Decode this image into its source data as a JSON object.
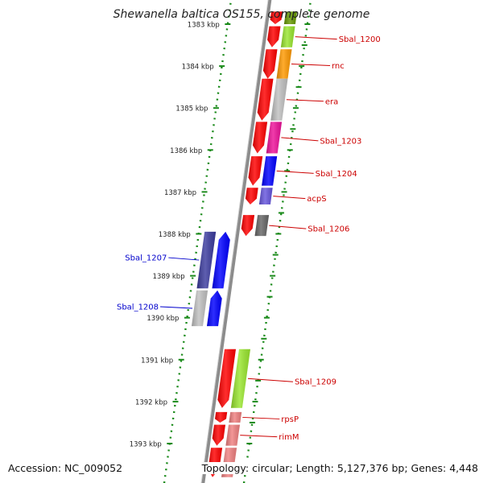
{
  "title": "Shewanella baltica OS155, complete genome",
  "accession_text": "Accession: NC_009052",
  "summary_text": "Topology: circular; Length: 5,127,376 bp; Genes: 4,448",
  "ruler_unit": "kbp",
  "ruler_ticks": [
    {
      "kbp": 1383,
      "label": "1383 kbp"
    },
    {
      "kbp": 1384,
      "label": "1384 kbp"
    },
    {
      "kbp": 1385,
      "label": "1385 kbp"
    },
    {
      "kbp": 1386,
      "label": "1386 kbp"
    },
    {
      "kbp": 1387,
      "label": "1387 kbp"
    },
    {
      "kbp": 1388,
      "label": "1388 kbp"
    },
    {
      "kbp": 1389,
      "label": "1389 kbp"
    },
    {
      "kbp": 1390,
      "label": "1390 kbp"
    },
    {
      "kbp": 1391,
      "label": "1391 kbp"
    },
    {
      "kbp": 1392,
      "label": "1392 kbp"
    },
    {
      "kbp": 1393,
      "label": "1393 kbp"
    }
  ],
  "strand_colors": {
    "forward": "#ff0000",
    "reverse": "#0000ff"
  },
  "genes": [
    {
      "label": "Sbal_1200",
      "strand": "forward",
      "start_kbp": 1383.05,
      "end_kbp": 1383.55,
      "cog_color": "#99e62e"
    },
    {
      "label": "rnc",
      "strand": "forward",
      "start_kbp": 1383.6,
      "end_kbp": 1384.3,
      "cog_color": "#ff9900"
    },
    {
      "label": "era",
      "strand": "forward",
      "start_kbp": 1384.3,
      "end_kbp": 1385.3,
      "cog_color": "#c0c0c0"
    },
    {
      "label": "Sbal_1203",
      "strand": "forward",
      "start_kbp": 1385.33,
      "end_kbp": 1386.08,
      "cog_color": "#ee1199"
    },
    {
      "label": "Sbal_1204",
      "strand": "forward",
      "start_kbp": 1386.15,
      "end_kbp": 1386.85,
      "cog_color": "#0000ff"
    },
    {
      "label": "acpS",
      "strand": "forward",
      "start_kbp": 1386.9,
      "end_kbp": 1387.3,
      "cog_color": "#6655dd"
    },
    {
      "label": "Sbal_1206",
      "strand": "forward",
      "start_kbp": 1387.55,
      "end_kbp": 1388.05,
      "cog_color": "#666666"
    },
    {
      "label": "Sbal_1207",
      "strand": "reverse",
      "start_kbp": 1387.95,
      "end_kbp": 1389.3,
      "cog_color": "#3b3b9e"
    },
    {
      "label": "Sbal_1208",
      "strand": "reverse",
      "start_kbp": 1389.35,
      "end_kbp": 1390.2,
      "cog_color": "#c0c0c0"
    },
    {
      "label": "Sbal_1209",
      "strand": "forward",
      "start_kbp": 1390.75,
      "end_kbp": 1392.15,
      "cog_color": "#99e62e"
    },
    {
      "label": "rpsP",
      "strand": "forward",
      "start_kbp": 1392.25,
      "end_kbp": 1392.5,
      "cog_color": "#f08080"
    },
    {
      "label": "rimM",
      "strand": "forward",
      "start_kbp": 1392.55,
      "end_kbp": 1393.05,
      "cog_color": "#f08080"
    },
    {
      "label": "",
      "strand": "forward",
      "start_kbp": 1393.1,
      "end_kbp": 1393.8,
      "cog_color": "#f08080"
    },
    {
      "label": "",
      "strand": "forward",
      "start_kbp": 1382.7,
      "end_kbp": 1383.0,
      "cog_color": "#669900"
    }
  ]
}
